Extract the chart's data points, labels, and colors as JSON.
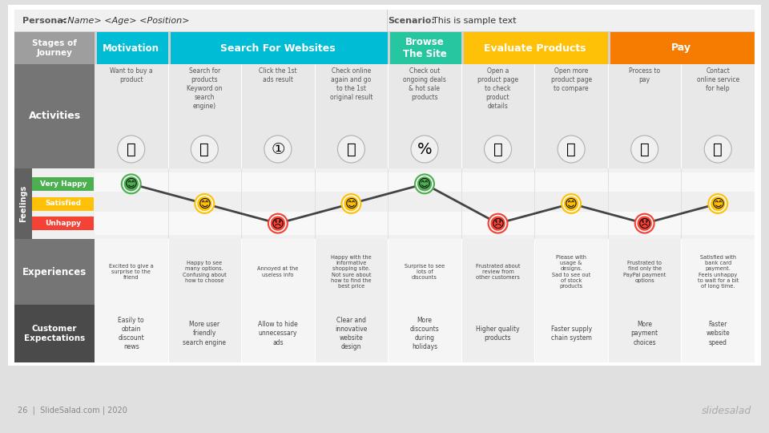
{
  "bg_color": "#e8e8e8",
  "top_bg": "#f0f0f0",
  "persona_text": "Persona:",
  "persona_value": "<Name> <Age> <Position>",
  "scenario_text": "Scenario:",
  "scenario_value": "This is sample text",
  "stage_row_bg": "#c8c8c8",
  "stages": [
    {
      "label": "Stages of\nJourney",
      "color": "#9e9e9e",
      "span": 1
    },
    {
      "label": "Motivation",
      "color": "#00bcd4",
      "span": 1
    },
    {
      "label": "Search For Websites",
      "color": "#00bcd4",
      "span": 3
    },
    {
      "label": "Browse\nThe Site",
      "color": "#26c6a0",
      "span": 1
    },
    {
      "label": "Evaluate Products",
      "color": "#ffc107",
      "span": 2
    },
    {
      "label": "Pay",
      "color": "#f57c00",
      "span": 2
    }
  ],
  "activity_texts": [
    "Want to buy a\nproduct",
    "Search for\nproducts\nKeyword on\nsearch\nengine)",
    "Click the 1st\nads result",
    "Check online\nagain and go\nto the 1st\noriginal result",
    "Check out\nongoing deals\n& hot sale\nproducts",
    "Open a\nproduct page\nto check\nproduct\ndetails",
    "Open more\nproduct page\nto compare",
    "Process to\npay",
    "Contact\nonline service\nfor help"
  ],
  "feeling_points": [
    {
      "col": 0,
      "level": "very_happy",
      "color": "#4caf50"
    },
    {
      "col": 1,
      "level": "satisfied",
      "color": "#ffc107"
    },
    {
      "col": 2,
      "level": "unhappy",
      "color": "#f44336"
    },
    {
      "col": 3,
      "level": "satisfied",
      "color": "#ffc107"
    },
    {
      "col": 4,
      "level": "very_happy",
      "color": "#4caf50"
    },
    {
      "col": 5,
      "level": "unhappy",
      "color": "#f44336"
    },
    {
      "col": 6,
      "level": "satisfied",
      "color": "#ffc107"
    },
    {
      "col": 7,
      "level": "unhappy",
      "color": "#f44336"
    },
    {
      "col": 8,
      "level": "satisfied",
      "color": "#ffc107"
    }
  ],
  "feel_labels": [
    "Very Happy",
    "Satisfied",
    "Unhappy"
  ],
  "feel_colors": [
    "#4caf50",
    "#ffc107",
    "#f44336"
  ],
  "experiences": [
    "Excited to give a\nsurprise to the\nfriend",
    "Happy to see\nmany options.\nConfusing about\nhow to choose",
    "Annoyed at the\nuseless info",
    "Happy with the\ninformative\nshopping site.\nNot sure about\nhow to find the\nbest price",
    "Surprise to see\nlots of\ndiscounts",
    "Frustrated about\nreview from\nother customers",
    "Please with\nusage &\ndesigns.\nSad to see out\nof stock\nproducts",
    "Frustrated to\nfind only the\nPayPal payment\noptions",
    "Satisfied with\nbank card\npayment.\nFeels unhappy\nto wait for a bit\nof long time."
  ],
  "expectations": [
    "Easily to\nobtain\ndiscount\nnews",
    "More user\nfriendly\nsearch engine",
    "Allow to hide\nunnecessary\nads",
    "Clear and\ninnovative\nwebsite\ndesign",
    "More\ndiscounts\nduring\nholidays",
    "Higher quality\nproducts",
    "Faster supply\nchain system",
    "More\npayment\nchoices",
    "Faster\nwebsite\nspeed"
  ],
  "footer_left": "26  |  SlideSalad.com | 2020",
  "footer_right": "slidesalad",
  "line_color": "#444444"
}
